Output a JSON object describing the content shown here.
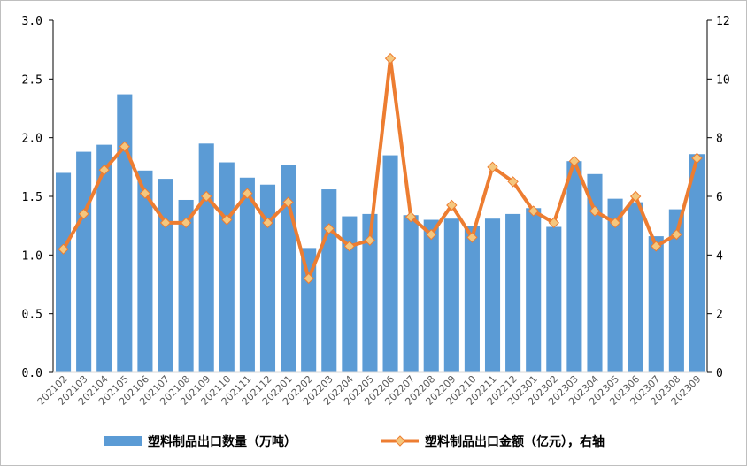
{
  "chart_data": {
    "type": "bar+line",
    "categories": [
      "202102",
      "202103",
      "202104",
      "202105",
      "202106",
      "202107",
      "202108",
      "202109",
      "202110",
      "202111",
      "202112",
      "202201",
      "202202",
      "202203",
      "202204",
      "202205",
      "202206",
      "202207",
      "202208",
      "202209",
      "202210",
      "202211",
      "202212",
      "202301",
      "202302",
      "202303",
      "202304",
      "202305",
      "202306",
      "202307",
      "202308",
      "202309"
    ],
    "series": [
      {
        "name": "塑料制品出口数量（万吨）",
        "type": "bar",
        "axis": "left",
        "color": "#5b9bd5",
        "values": [
          1.7,
          1.88,
          1.94,
          2.37,
          1.72,
          1.65,
          1.47,
          1.95,
          1.79,
          1.66,
          1.6,
          1.77,
          1.06,
          1.56,
          1.33,
          1.35,
          1.85,
          1.34,
          1.3,
          1.31,
          1.25,
          1.31,
          1.35,
          1.4,
          1.24,
          1.8,
          1.69,
          1.48,
          1.45,
          1.16,
          1.39,
          1.86
        ]
      },
      {
        "name": "塑料制品出口金额（亿元），右轴",
        "type": "line",
        "axis": "right",
        "color": "#ed7d31",
        "marker_color": "#f5c77e",
        "values": [
          4.2,
          5.4,
          6.9,
          7.7,
          6.1,
          5.1,
          5.1,
          6.0,
          5.2,
          6.1,
          5.1,
          5.8,
          3.2,
          4.9,
          4.3,
          4.5,
          10.7,
          5.3,
          4.7,
          5.7,
          4.6,
          7.0,
          6.5,
          5.5,
          5.1,
          7.2,
          5.5,
          5.1,
          6.0,
          4.3,
          4.7,
          7.3
        ]
      }
    ],
    "y_left": {
      "ylim": [
        0,
        3.0
      ],
      "ticks": [
        "0.0",
        "0.5",
        "1.0",
        "1.5",
        "2.0",
        "2.5",
        "3.0"
      ]
    },
    "y_right": {
      "ylim": [
        0,
        12
      ],
      "ticks": [
        "0",
        "2",
        "4",
        "6",
        "8",
        "10",
        "12"
      ]
    },
    "grid": false,
    "legend_position": "bottom"
  }
}
